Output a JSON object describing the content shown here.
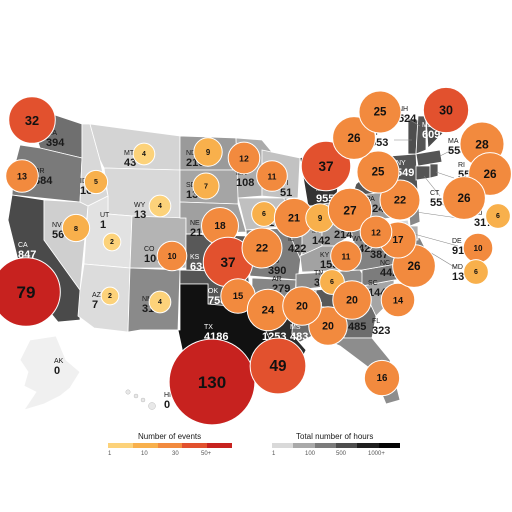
{
  "states": [
    {
      "abbr": "WA",
      "hours": "394"
    },
    {
      "abbr": "OR",
      "hours": "384"
    },
    {
      "abbr": "CA",
      "hours": "847"
    },
    {
      "abbr": "NV",
      "hours": "56"
    },
    {
      "abbr": "ID",
      "hours": "16"
    },
    {
      "abbr": "MT",
      "hours": "43"
    },
    {
      "abbr": "WY",
      "hours": "13"
    },
    {
      "abbr": "UT",
      "hours": "1"
    },
    {
      "abbr": "AZ",
      "hours": "7"
    },
    {
      "abbr": "CO",
      "hours": "100"
    },
    {
      "abbr": "NM",
      "hours": "312"
    },
    {
      "abbr": "ND",
      "hours": "216"
    },
    {
      "abbr": "SD",
      "hours": "130"
    },
    {
      "abbr": "NE",
      "hours": "210"
    },
    {
      "abbr": "KS",
      "hours": "634"
    },
    {
      "abbr": "OK",
      "hours": "758"
    },
    {
      "abbr": "TX",
      "hours": "4186"
    },
    {
      "abbr": "MN",
      "hours": "108"
    },
    {
      "abbr": "IA",
      "hours": "41"
    },
    {
      "abbr": "MO",
      "hours": "390"
    },
    {
      "abbr": "AR",
      "hours": "279"
    },
    {
      "abbr": "LA",
      "hours": "1253"
    },
    {
      "abbr": "WI",
      "hours": "51"
    },
    {
      "abbr": "IL",
      "hours": "422"
    },
    {
      "abbr": "MI",
      "hours": "955"
    },
    {
      "abbr": "IN",
      "hours": "142"
    },
    {
      "abbr": "OH",
      "hours": "214"
    },
    {
      "abbr": "KY",
      "hours": "155"
    },
    {
      "abbr": "TN",
      "hours": "311"
    },
    {
      "abbr": "MS",
      "hours": "483"
    },
    {
      "abbr": "AL",
      "hours": "645"
    },
    {
      "abbr": "GA",
      "hours": "485"
    },
    {
      "abbr": "FL",
      "hours": "323"
    },
    {
      "abbr": "SC",
      "hours": "144"
    },
    {
      "abbr": "NC",
      "hours": "442"
    },
    {
      "abbr": "VA",
      "hours": "387"
    },
    {
      "abbr": "WV",
      "hours": "342"
    },
    {
      "abbr": "PA",
      "hours": "124"
    },
    {
      "abbr": "NY",
      "hours": "549"
    },
    {
      "abbr": "VT",
      "hours": "553"
    },
    {
      "abbr": "NH",
      "hours": "524"
    },
    {
      "abbr": "ME",
      "hours": "609"
    },
    {
      "abbr": "MA",
      "hours": "554"
    },
    {
      "abbr": "RI",
      "hours": "553"
    },
    {
      "abbr": "CT",
      "hours": "553"
    },
    {
      "abbr": "NJ",
      "hours": "317"
    },
    {
      "abbr": "DE",
      "hours": "91"
    },
    {
      "abbr": "MD",
      "hours": "13"
    },
    {
      "abbr": "AK",
      "hours": "0"
    },
    {
      "abbr": "HI",
      "hours": "0"
    }
  ],
  "events": [
    {
      "abbr": "WA",
      "count": 32
    },
    {
      "abbr": "OR",
      "count": 13
    },
    {
      "abbr": "ID",
      "count": 5
    },
    {
      "abbr": "MT",
      "count": 4
    },
    {
      "abbr": "WY",
      "count": 4
    },
    {
      "abbr": "NV",
      "count": 8
    },
    {
      "abbr": "UT",
      "count": 2
    },
    {
      "abbr": "AZ",
      "count": 2
    },
    {
      "abbr": "CA",
      "count": 79
    },
    {
      "abbr": "CO",
      "count": 10
    },
    {
      "abbr": "NM",
      "count": 4
    },
    {
      "abbr": "ND",
      "count": 9
    },
    {
      "abbr": "SD",
      "count": 7
    },
    {
      "abbr": "NE",
      "count": 18
    },
    {
      "abbr": "KS",
      "count": 37
    },
    {
      "abbr": "OK",
      "count": 15
    },
    {
      "abbr": "TX",
      "count": 130
    },
    {
      "abbr": "MN",
      "count": 12
    },
    {
      "abbr": "IA",
      "count": 6
    },
    {
      "abbr": "MO",
      "count": 22
    },
    {
      "abbr": "AR",
      "count": 24
    },
    {
      "abbr": "LA",
      "count": 49
    },
    {
      "abbr": "MS",
      "count": 20
    },
    {
      "abbr": "WI",
      "count": 11
    },
    {
      "abbr": "IL",
      "count": 21
    },
    {
      "abbr": "MI",
      "count": 37
    },
    {
      "abbr": "IN",
      "count": 9
    },
    {
      "abbr": "OH",
      "count": 27
    },
    {
      "abbr": "KY",
      "count": 11
    },
    {
      "abbr": "TN",
      "count": 6
    },
    {
      "abbr": "AL",
      "count": 20
    },
    {
      "abbr": "GA",
      "count": 20
    },
    {
      "abbr": "FL",
      "count": 16
    },
    {
      "abbr": "SC",
      "count": 14
    },
    {
      "abbr": "NC",
      "count": 26
    },
    {
      "abbr": "VA",
      "count": 17
    },
    {
      "abbr": "WV",
      "count": 12
    },
    {
      "abbr": "PA",
      "count": 22
    },
    {
      "abbr": "NY",
      "count": 25
    },
    {
      "abbr": "VT",
      "count": 26
    },
    {
      "abbr": "NH",
      "count": 25
    },
    {
      "abbr": "ME",
      "count": 30
    },
    {
      "abbr": "MA",
      "count": 28
    },
    {
      "abbr": "RI",
      "count": 26
    },
    {
      "abbr": "CT",
      "count": 26
    },
    {
      "abbr": "NJ",
      "count": 6
    },
    {
      "abbr": "DE",
      "count": 10
    },
    {
      "abbr": "MD",
      "count": 6
    }
  ],
  "legend_events": {
    "title": "Number of events",
    "ticks": [
      "1",
      "10",
      "30",
      "50+"
    ],
    "colors": [
      "#fcd27a",
      "#f8b04c",
      "#f28a3e",
      "#e2512e",
      "#c7221f"
    ]
  },
  "legend_hours": {
    "title": "Total number of hours",
    "ticks": [
      "1",
      "100",
      "500",
      "1000+"
    ],
    "colors": [
      "#d9d9d9",
      "#a9a9a9",
      "#7b7b7b",
      "#4d4d4d",
      "#1f1f1f",
      "#050505"
    ]
  },
  "colors": {
    "land_light": "#d6d6d6",
    "land_mid": "#8f8f8f",
    "land_dark": "#4a4a4a",
    "land_black": "#111111"
  }
}
